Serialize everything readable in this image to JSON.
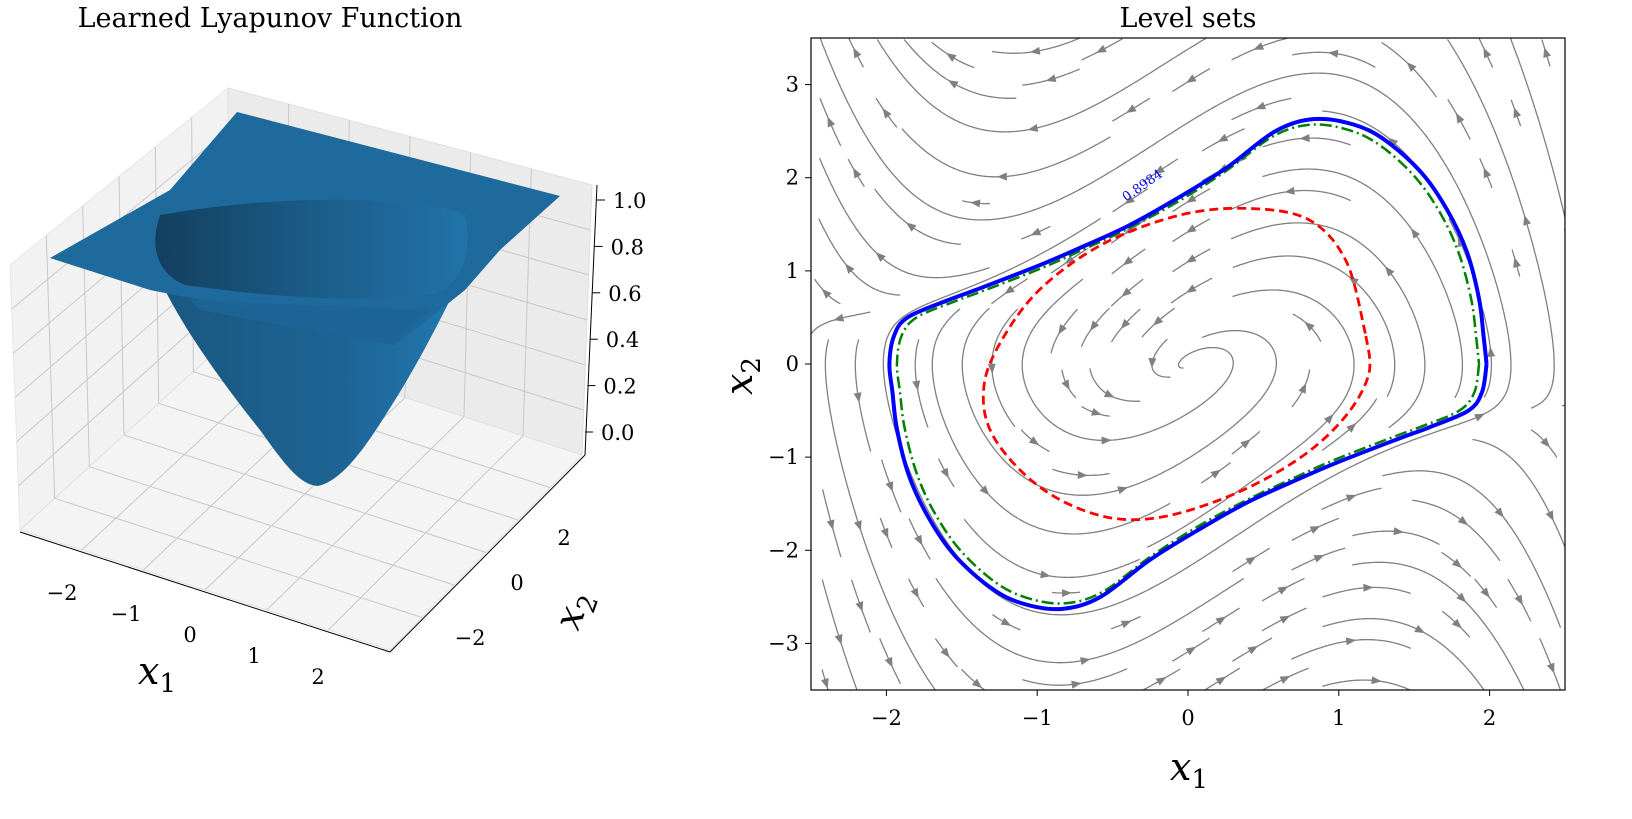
{
  "chart_data": [
    {
      "type": "surface3d",
      "title": "Learned Lyapunov Function",
      "xlabel": "x",
      "xlabel_sub": "1",
      "ylabel": "x",
      "ylabel_sub": "2",
      "x_ticks": [
        "−2",
        "−1",
        "0",
        "1",
        "2"
      ],
      "y_ticks": [
        "−2",
        "0",
        "2"
      ],
      "z_ticks": [
        "0.0",
        "0.2",
        "0.4",
        "0.6",
        "0.8",
        "1.0"
      ],
      "zlim": [
        0,
        1
      ],
      "surface_color": "#1f77b4",
      "grid": true
    },
    {
      "type": "streamplot_contour",
      "title": "Level sets",
      "xlabel": "x",
      "xlabel_sub": "1",
      "ylabel": "x",
      "ylabel_sub": "2",
      "xlim": [
        -2.5,
        2.5
      ],
      "ylim": [
        -3.5,
        3.5
      ],
      "x_ticks": [
        {
          "value": -2,
          "label": "−2"
        },
        {
          "value": -1,
          "label": "−1"
        },
        {
          "value": 0,
          "label": "0"
        },
        {
          "value": 1,
          "label": "1"
        },
        {
          "value": 2,
          "label": "2"
        }
      ],
      "y_ticks": [
        {
          "value": 3,
          "label": "3"
        },
        {
          "value": 2,
          "label": "2"
        },
        {
          "value": 1,
          "label": "1"
        },
        {
          "value": 0,
          "label": "0"
        },
        {
          "value": -1,
          "label": "−1"
        },
        {
          "value": -2,
          "label": "−2"
        },
        {
          "value": -3,
          "label": "−3"
        }
      ],
      "streamline_color": "#808080",
      "contours": [
        {
          "style": "solid",
          "color": "#0000ff",
          "label": "0.8984",
          "label_at": [
            -0.41,
            1.74
          ],
          "points": [
            [
              1.98,
              0
            ],
            [
              1.95,
              -0.3
            ],
            [
              1.86,
              -0.5
            ],
            [
              1.6,
              -0.68
            ],
            [
              1.4,
              -0.8
            ],
            [
              1.0,
              -1.05
            ],
            [
              0.74,
              -1.23
            ],
            [
              0.4,
              -1.48
            ],
            [
              0.08,
              -1.77
            ],
            [
              -0.25,
              -2.1
            ],
            [
              -0.58,
              -2.5
            ],
            [
              -0.84,
              -2.63
            ],
            [
              -1.1,
              -2.57
            ],
            [
              -1.31,
              -2.4
            ],
            [
              -1.55,
              -2.05
            ],
            [
              -1.72,
              -1.65
            ],
            [
              -1.85,
              -1.2
            ],
            [
              -1.93,
              -0.7
            ],
            [
              -1.96,
              -0.3
            ],
            [
              -1.98,
              0
            ],
            [
              -1.95,
              0.3
            ],
            [
              -1.86,
              0.5
            ],
            [
              -1.6,
              0.68
            ],
            [
              -1.4,
              0.8
            ],
            [
              -1.0,
              1.05
            ],
            [
              -0.74,
              1.23
            ],
            [
              -0.4,
              1.48
            ],
            [
              -0.08,
              1.77
            ],
            [
              0.25,
              2.1
            ],
            [
              0.58,
              2.5
            ],
            [
              0.84,
              2.63
            ],
            [
              1.1,
              2.57
            ],
            [
              1.31,
              2.4
            ],
            [
              1.55,
              2.05
            ],
            [
              1.72,
              1.65
            ],
            [
              1.85,
              1.2
            ],
            [
              1.93,
              0.7
            ],
            [
              1.96,
              0.3
            ],
            [
              1.98,
              0
            ]
          ]
        },
        {
          "style": "dashdot",
          "color": "#008000",
          "points": [
            [
              1.93,
              0
            ],
            [
              1.9,
              -0.3
            ],
            [
              1.8,
              -0.5
            ],
            [
              1.55,
              -0.67
            ],
            [
              1.35,
              -0.79
            ],
            [
              0.97,
              -1.03
            ],
            [
              0.72,
              -1.21
            ],
            [
              0.39,
              -1.46
            ],
            [
              0.07,
              -1.74
            ],
            [
              -0.25,
              -2.07
            ],
            [
              -0.57,
              -2.45
            ],
            [
              -0.82,
              -2.57
            ],
            [
              -1.07,
              -2.51
            ],
            [
              -1.28,
              -2.34
            ],
            [
              -1.51,
              -2.0
            ],
            [
              -1.68,
              -1.6
            ],
            [
              -1.8,
              -1.17
            ],
            [
              -1.88,
              -0.68
            ],
            [
              -1.91,
              -0.3
            ],
            [
              -1.93,
              0
            ],
            [
              -1.9,
              0.3
            ],
            [
              -1.8,
              0.5
            ],
            [
              -1.55,
              0.67
            ],
            [
              -1.35,
              0.79
            ],
            [
              -0.97,
              1.03
            ],
            [
              -0.72,
              1.21
            ],
            [
              -0.39,
              1.46
            ],
            [
              -0.07,
              1.74
            ],
            [
              0.25,
              2.07
            ],
            [
              0.57,
              2.45
            ],
            [
              0.82,
              2.57
            ],
            [
              1.07,
              2.51
            ],
            [
              1.28,
              2.34
            ],
            [
              1.51,
              2.0
            ],
            [
              1.68,
              1.6
            ],
            [
              1.8,
              1.17
            ],
            [
              1.88,
              0.68
            ],
            [
              1.91,
              0.3
            ],
            [
              1.93,
              0
            ]
          ]
        },
        {
          "style": "dashed",
          "color": "#ff0000",
          "points": [
            [
              1.18,
              0.3
            ],
            [
              1.2,
              -0.1
            ],
            [
              1.05,
              -0.55
            ],
            [
              0.75,
              -1.0
            ],
            [
              0.3,
              -1.4
            ],
            [
              -0.2,
              -1.65
            ],
            [
              -0.6,
              -1.62
            ],
            [
              -1.0,
              -1.3
            ],
            [
              -1.3,
              -0.75
            ],
            [
              -1.35,
              -0.2
            ],
            [
              -1.2,
              0.35
            ],
            [
              -0.95,
              0.85
            ],
            [
              -0.55,
              1.3
            ],
            [
              -0.05,
              1.6
            ],
            [
              0.4,
              1.67
            ],
            [
              0.8,
              1.55
            ],
            [
              1.05,
              1.1
            ],
            [
              1.18,
              0.3
            ]
          ]
        }
      ]
    }
  ]
}
